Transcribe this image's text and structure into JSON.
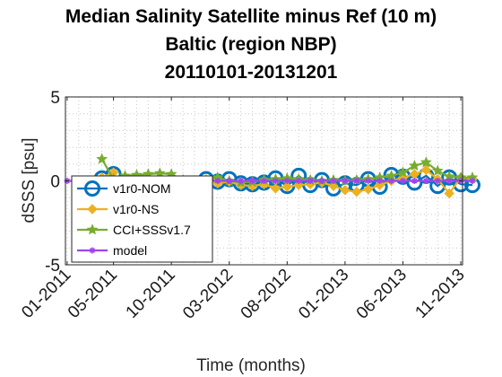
{
  "chart_data": {
    "type": "line",
    "title": [
      "Median Salinity Satellite minus Ref (10 m)",
      "Baltic (region NBP)",
      "20110101-20131201"
    ],
    "xlabel": "Time (months)",
    "ylabel": "dSSS [psu]",
    "ylim": [
      -5,
      5
    ],
    "yticks": [
      -5,
      0,
      5
    ],
    "xticks": [
      "01-2011",
      "05-2011",
      "10-2011",
      "03-2012",
      "08-2012",
      "01-2013",
      "06-2013",
      "11-2013"
    ],
    "x_start": "01-2011",
    "x_end": "11-2013",
    "x": [
      "01-2011",
      "02-2011",
      "03-2011",
      "04-2011",
      "05-2011",
      "06-2011",
      "07-2011",
      "08-2011",
      "09-2011",
      "10-2011",
      "11-2011",
      "12-2011",
      "01-2012",
      "02-2012",
      "03-2012",
      "04-2012",
      "05-2012",
      "06-2012",
      "07-2012",
      "08-2012",
      "09-2012",
      "10-2012",
      "11-2012",
      "12-2012",
      "01-2013",
      "02-2013",
      "03-2013",
      "04-2013",
      "05-2013",
      "06-2013",
      "07-2013",
      "08-2013",
      "09-2013",
      "10-2013",
      "11-2013",
      "12-2013"
    ],
    "grid": true,
    "legend_position": "bottom-left",
    "series": [
      {
        "name": "v1r0-NOM",
        "color": "#0072bd",
        "marker": "circle",
        "values": [
          null,
          null,
          null,
          0.15,
          0.4,
          null,
          null,
          null,
          null,
          -0.1,
          -0.2,
          -0.35,
          0.1,
          -0.05,
          0.1,
          -0.15,
          -0.2,
          -0.1,
          0.15,
          -0.3,
          0.3,
          -0.25,
          0.05,
          -0.45,
          -0.15,
          -0.25,
          0.1,
          -0.35,
          0.35,
          0.25,
          -0.1,
          0.3,
          -0.3,
          0.2,
          -0.2,
          -0.25
        ]
      },
      {
        "name": "v1r0-NS",
        "color": "#edb120",
        "marker": "diamond",
        "values": [
          null,
          null,
          null,
          0.2,
          0.5,
          null,
          null,
          null,
          null,
          -0.05,
          -0.1,
          0.05,
          0.0,
          -0.15,
          -0.05,
          -0.25,
          -0.3,
          -0.2,
          -0.45,
          -0.35,
          -0.25,
          -0.2,
          -0.1,
          -0.3,
          -0.55,
          -0.65,
          -0.5,
          -0.25,
          0.0,
          0.2,
          0.4,
          0.65,
          0.1,
          -0.75,
          0.2,
          0.1
        ]
      },
      {
        "name": "CCI+SSSv1.7",
        "color": "#77ac30",
        "marker": "star",
        "values": [
          null,
          null,
          null,
          1.3,
          0.1,
          0.3,
          0.35,
          0.4,
          0.45,
          0.4,
          0.05,
          -0.1,
          0.05,
          0.2,
          0.0,
          -0.1,
          -0.05,
          0.05,
          0.1,
          0.15,
          0.1,
          0.05,
          0.0,
          0.05,
          0.0,
          0.05,
          0.1,
          0.2,
          0.3,
          0.5,
          0.9,
          1.1,
          0.6,
          0.25,
          0.2,
          0.2
        ]
      },
      {
        "name": "model",
        "color": "#9f45ec",
        "marker": "asterisk",
        "values": [
          0.0,
          0.0,
          0.0,
          0.0,
          0.0,
          0.0,
          0.0,
          0.0,
          0.0,
          0.0,
          0.0,
          0.0,
          0.0,
          0.0,
          0.0,
          0.0,
          0.0,
          0.0,
          0.0,
          0.0,
          0.0,
          0.0,
          0.0,
          0.0,
          0.0,
          0.0,
          0.0,
          0.0,
          0.0,
          0.0,
          0.0,
          0.0,
          0.0,
          0.0,
          0.0,
          0.0
        ]
      }
    ]
  }
}
